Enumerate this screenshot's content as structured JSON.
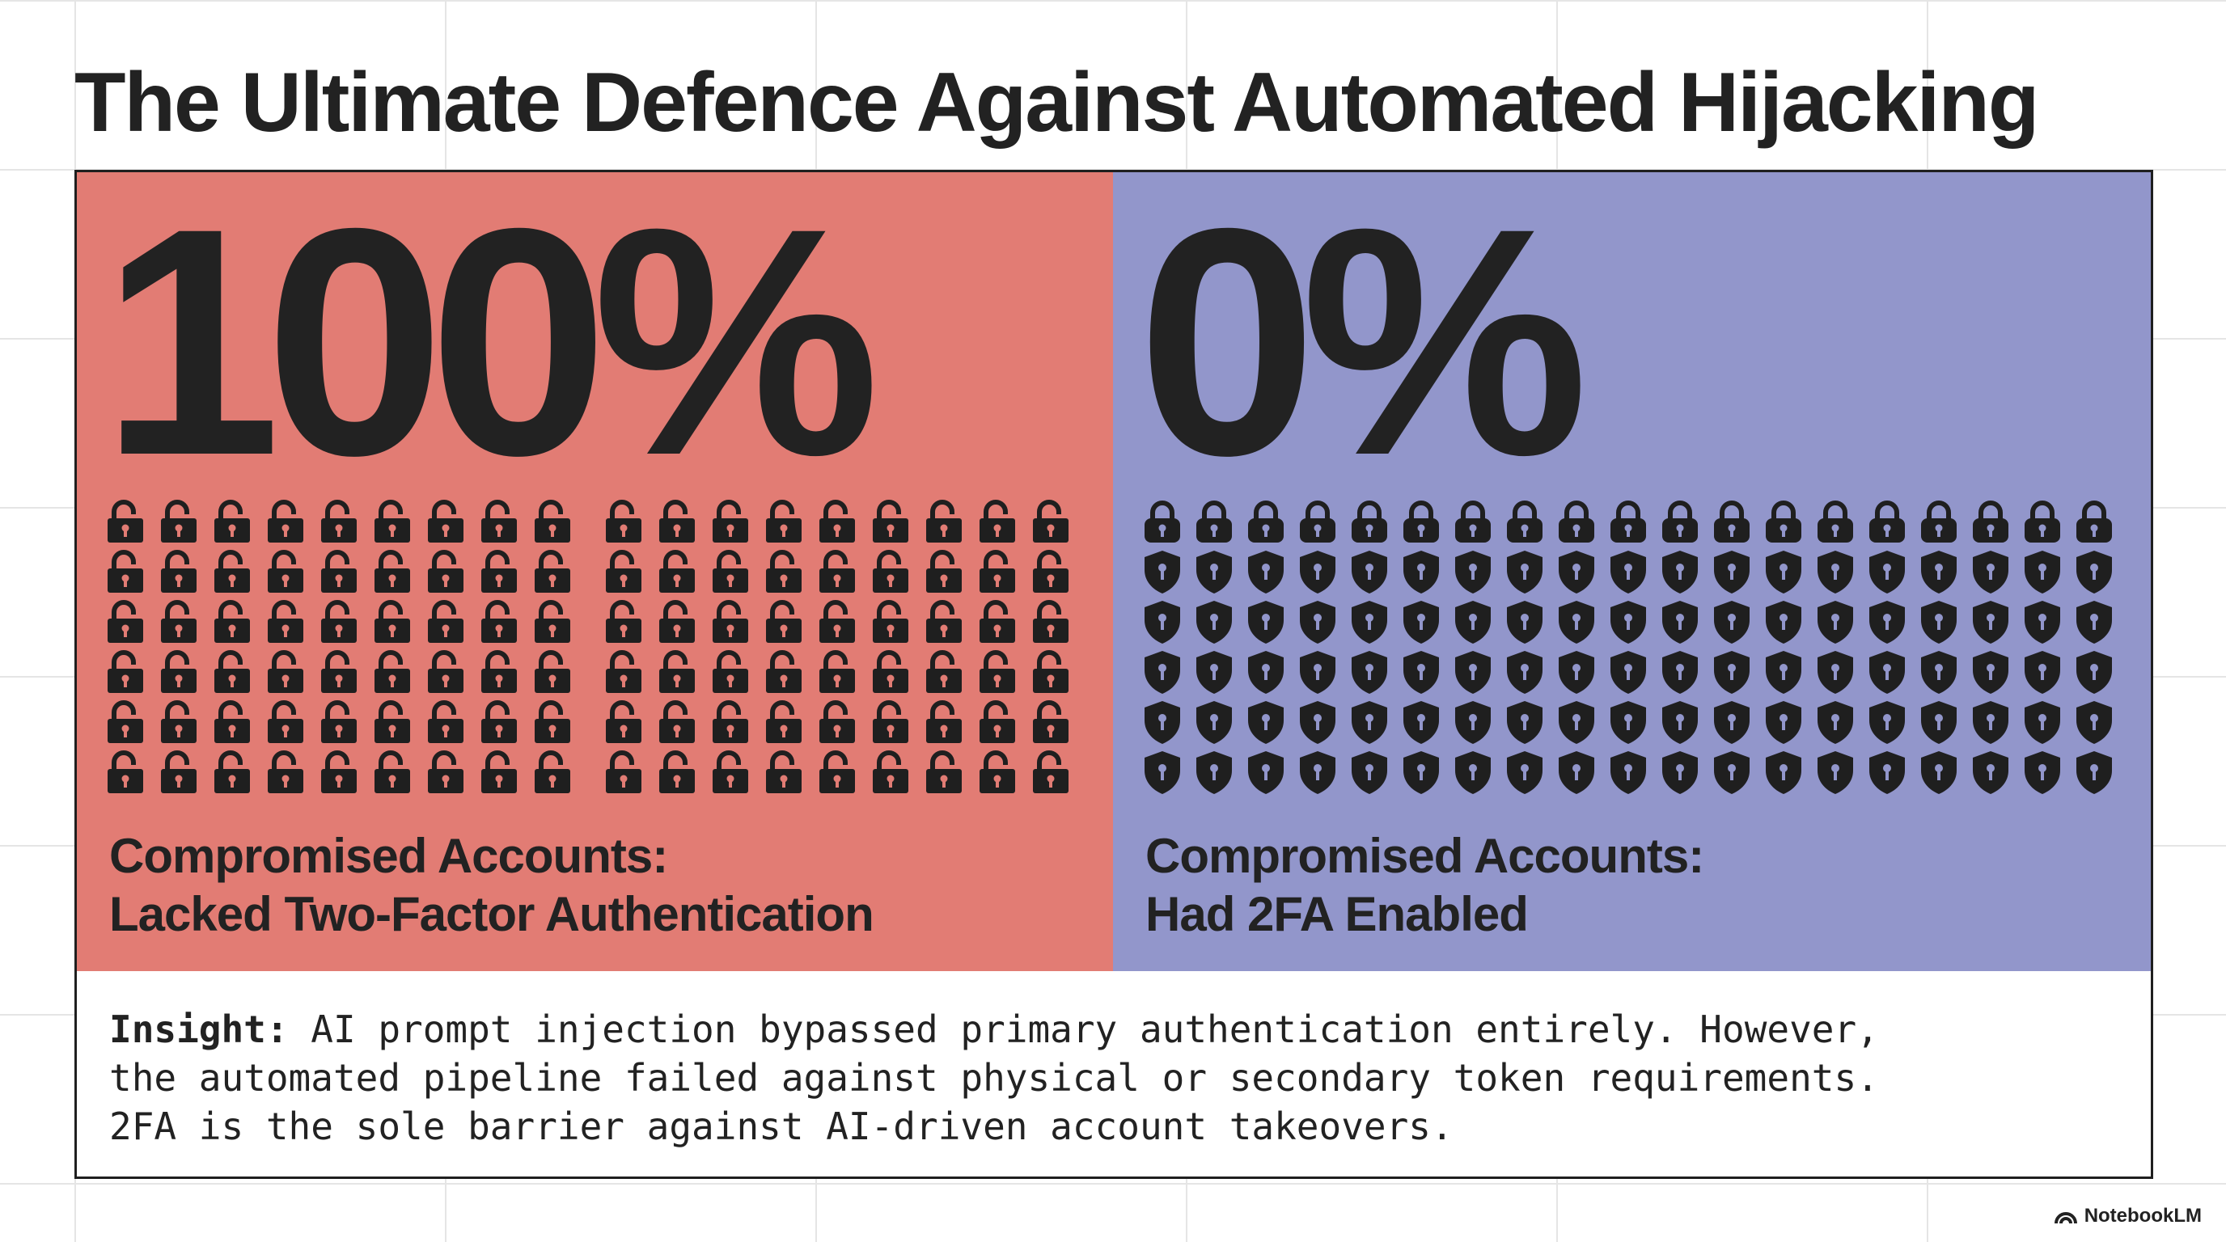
{
  "title": "The Ultimate Defence Against Automated Hijacking",
  "colors": {
    "left_panel_bg": "#e27c74",
    "right_panel_bg": "#9296cb",
    "text": "#222222",
    "grid": "#e5e5e5"
  },
  "left_panel": {
    "stat": "100%",
    "icon": "unlocked-padlock-icon",
    "icon_count": 108,
    "caption_line1": "Compromised Accounts:",
    "caption_line2": "Lacked Two-Factor Authentication"
  },
  "right_panel": {
    "stat": "0%",
    "icon_top_row": "locked-padlock-icon",
    "icon_other_rows": "shield-keyhole-icon",
    "icon_count": 114,
    "caption_line1": "Compromised Accounts:",
    "caption_line2": "Had 2FA Enabled"
  },
  "insight": {
    "label": "Insight:",
    "line1": " AI prompt injection bypassed primary authentication entirely. However,",
    "line2": "the automated pipeline failed against physical or secondary token requirements.",
    "line3": "2FA is the sole barrier against AI-driven account takeovers."
  },
  "brand": {
    "name": "NotebookLM",
    "icon": "notebooklm-logo-icon"
  }
}
